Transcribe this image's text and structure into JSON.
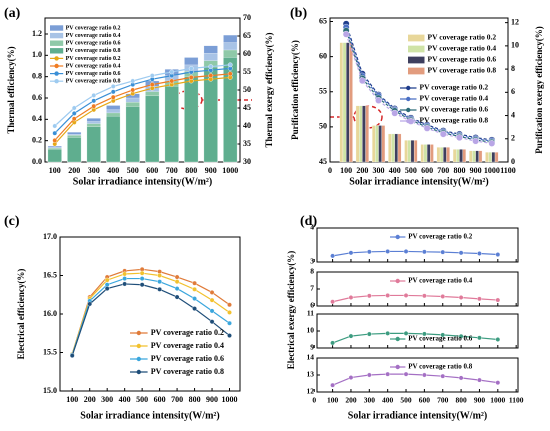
{
  "chart_data": [
    {
      "type": "bar-line",
      "panel": "(a)",
      "bar_mode": "overlap",
      "xlabel": "Solar irradiance intensity(W/m²)",
      "ylabel": "Thermal efficiency(%)",
      "y2label": "Thermal exergy efficiency(%)",
      "categories": [
        "100",
        "200",
        "300",
        "400",
        "500",
        "600",
        "700",
        "800",
        "900",
        "1000"
      ],
      "ylim": [
        0,
        1.35
      ],
      "yticks": [
        {
          "value": 0,
          "label": "0.0"
        },
        0.2,
        0.4,
        0.6,
        0.8,
        {
          "value": 1,
          "label": "1.0"
        },
        1.2
      ],
      "y2lim": [
        30,
        70
      ],
      "y2ticks": [
        30,
        35,
        40,
        45,
        50,
        55,
        60,
        65,
        70
      ],
      "series": [
        {
          "name": "PV coverage ratio 0.2",
          "color": "#7b9ed6",
          "values": [
            0.15,
            0.28,
            0.41,
            0.53,
            0.64,
            0.76,
            0.87,
            0.98,
            1.09,
            1.19
          ]
        },
        {
          "name": "PV coverage ratio 0.4",
          "color": "#a8c3e6",
          "values": [
            0.14,
            0.26,
            0.38,
            0.49,
            0.6,
            0.71,
            0.81,
            0.91,
            1.02,
            1.12
          ]
        },
        {
          "name": "PV coverage ratio 0.6",
          "color": "#8fc9a8",
          "values": [
            0.13,
            0.25,
            0.36,
            0.46,
            0.56,
            0.66,
            0.76,
            0.85,
            0.95,
            1.05
          ]
        },
        {
          "name": "PV coverage ratio 0.8",
          "color": "#5fae8f",
          "values": [
            0.12,
            0.23,
            0.33,
            0.43,
            0.52,
            0.62,
            0.71,
            0.8,
            0.89,
            0.98
          ]
        },
        {
          "name": "PV coverage ratio 0.2",
          "color": "#e6a817",
          "axis": "y2",
          "values": [
            35,
            41,
            44.5,
            47,
            49,
            50.5,
            51.5,
            52.5,
            53,
            53.5
          ]
        },
        {
          "name": "PV coverage ratio 0.4",
          "color": "#f07c22",
          "axis": "y2",
          "values": [
            36,
            42,
            45.5,
            48,
            50,
            51.5,
            52.5,
            53.5,
            54,
            54.5
          ]
        },
        {
          "name": "PV coverage ratio 0.6",
          "color": "#3a8fd6",
          "axis": "y2",
          "values": [
            38,
            43.5,
            47,
            49.5,
            51.5,
            53,
            54,
            55,
            55.5,
            56
          ]
        },
        {
          "name": "PV coverage ratio 0.8",
          "color": "#9ecbf0",
          "axis": "y2",
          "values": [
            40,
            45,
            48.5,
            51,
            52.5,
            54,
            55,
            56,
            56.5,
            57
          ]
        }
      ]
    },
    {
      "type": "bar-line",
      "panel": "(b)",
      "bar_mode": "group",
      "xlabel": "Solar irradiance intensity(W/m²)",
      "ylabel": "Purification efficiency(%)",
      "y2label": "Purification exergy efficiency(%)",
      "x": [
        100,
        200,
        300,
        400,
        500,
        600,
        700,
        800,
        900,
        1000
      ],
      "xlim": [
        0,
        1100
      ],
      "xticks": [
        0,
        100,
        200,
        300,
        400,
        500,
        600,
        700,
        800,
        900,
        1000,
        1100
      ],
      "ylim": [
        45,
        65.5
      ],
      "yticks": [
        45,
        50,
        55,
        60,
        65
      ],
      "y2lim": [
        0,
        12.4
      ],
      "y2ticks": [
        0,
        2,
        4,
        6,
        8,
        10,
        12
      ],
      "series": [
        {
          "name": "PV coverage ratio 0.2",
          "color": "#e8d79a",
          "values": [
            62.0,
            53.0,
            50.2,
            49.0,
            48.1,
            47.5,
            47.1,
            46.8,
            46.6,
            46.4
          ]
        },
        {
          "name": "PV coverage ratio 0.4",
          "color": "#cfe3a6",
          "values": [
            62.0,
            53.0,
            50.2,
            49.0,
            48.1,
            47.5,
            47.1,
            46.8,
            46.6,
            46.4
          ]
        },
        {
          "name": "PV coverage ratio 0.6",
          "color": "#3e3f5e",
          "values": [
            62.0,
            53.0,
            50.2,
            49.0,
            48.1,
            47.5,
            47.1,
            46.8,
            46.6,
            46.4
          ]
        },
        {
          "name": "PV coverage ratio 0.8",
          "color": "#e29c7e",
          "values": [
            62.0,
            53.0,
            50.2,
            49.0,
            48.1,
            47.5,
            47.1,
            46.8,
            46.6,
            46.4
          ]
        },
        {
          "name": "PV coverage ratio 0.2",
          "color": "#1f3d8c",
          "axis": "y2",
          "values": [
            11.9,
            7.6,
            5.8,
            4.6,
            3.8,
            3.2,
            2.7,
            2.4,
            2.1,
            1.9
          ]
        },
        {
          "name": "PV coverage ratio 0.4",
          "color": "#4a6fc4",
          "axis": "y2",
          "values": [
            11.6,
            7.4,
            5.7,
            4.5,
            3.7,
            3.1,
            2.6,
            2.3,
            2.0,
            1.8
          ]
        },
        {
          "name": "PV coverage ratio 0.6",
          "color": "#2a6b78",
          "axis": "y2",
          "values": [
            11.3,
            7.2,
            5.5,
            4.4,
            3.6,
            3.0,
            2.5,
            2.2,
            1.9,
            1.7
          ]
        },
        {
          "name": "PV coverage ratio 0.8",
          "color": "#b9a6e6",
          "axis": "y2",
          "values": [
            11.0,
            7.0,
            5.3,
            4.2,
            3.5,
            2.9,
            2.4,
            2.1,
            1.8,
            1.6
          ]
        }
      ]
    },
    {
      "type": "line",
      "panel": "(c)",
      "xlabel": "Solar irradiance intensity(W/m²)",
      "ylabel": "Electrical efficiency(%)",
      "x": [
        100,
        200,
        300,
        400,
        500,
        600,
        700,
        800,
        900,
        1000
      ],
      "xlim": [
        30,
        1060
      ],
      "xticks": [
        100,
        200,
        300,
        400,
        500,
        600,
        700,
        800,
        900,
        1000
      ],
      "ylim": [
        15,
        17
      ],
      "yticks": [
        {
          "value": 15,
          "label": "15.0"
        },
        15.5,
        {
          "value": 16,
          "label": "16.0"
        },
        16.5,
        {
          "value": 17,
          "label": "17.0"
        }
      ],
      "series": [
        {
          "name": "PV coverage ratio 0.2",
          "color": "#e07b39",
          "values": [
            15.48,
            16.22,
            16.48,
            16.56,
            16.58,
            16.55,
            16.48,
            16.4,
            16.28,
            16.12
          ]
        },
        {
          "name": "PV coverage ratio 0.4",
          "color": "#f2c12e",
          "values": [
            15.48,
            16.2,
            16.44,
            16.52,
            16.53,
            16.5,
            16.42,
            16.32,
            16.18,
            16.02
          ]
        },
        {
          "name": "PV coverage ratio 0.6",
          "color": "#3aa6dd",
          "values": [
            15.47,
            16.17,
            16.38,
            16.46,
            16.46,
            16.42,
            16.33,
            16.2,
            16.04,
            15.88
          ]
        },
        {
          "name": "PV coverage ratio 0.8",
          "color": "#1f4e79",
          "values": [
            15.46,
            16.13,
            16.33,
            16.39,
            16.38,
            16.32,
            16.22,
            16.07,
            15.9,
            15.72
          ]
        }
      ]
    },
    {
      "type": "line",
      "panel": "(d)",
      "ylabel": "Electrical exergy efficiency(%)",
      "x": [
        100,
        200,
        300,
        400,
        500,
        600,
        700,
        800,
        900,
        1000
      ],
      "xlim": [
        15,
        1110
      ],
      "xticks": [
        0,
        100,
        200,
        300,
        400,
        500,
        600,
        700,
        800,
        900,
        1000,
        1100
      ],
      "ylim": [
        3,
        4
      ],
      "yticks": [
        3,
        4
      ],
      "series": [
        {
          "name": "PV coverage ratio 0.2",
          "color": "#5b7fd4",
          "values": [
            3.18,
            3.27,
            3.3,
            3.31,
            3.31,
            3.3,
            3.29,
            3.27,
            3.25,
            3.22
          ]
        }
      ]
    },
    {
      "type": "line",
      "x": [
        100,
        200,
        300,
        400,
        500,
        600,
        700,
        800,
        900,
        1000
      ],
      "xlim": [
        15,
        1110
      ],
      "xticks": [
        0,
        100,
        200,
        300,
        400,
        500,
        600,
        700,
        800,
        900,
        1000,
        1100
      ],
      "ylim": [
        6,
        8
      ],
      "yticks": [
        6,
        7,
        8
      ],
      "series": [
        {
          "name": "PV coverage ratio 0.4",
          "color": "#e07a9a",
          "values": [
            6.25,
            6.5,
            6.6,
            6.62,
            6.62,
            6.6,
            6.56,
            6.5,
            6.42,
            6.35
          ]
        }
      ]
    },
    {
      "type": "line",
      "x": [
        100,
        200,
        300,
        400,
        500,
        600,
        700,
        800,
        900,
        1000
      ],
      "xlim": [
        15,
        1110
      ],
      "xticks": [
        0,
        100,
        200,
        300,
        400,
        500,
        600,
        700,
        800,
        900,
        1000,
        1100
      ],
      "ylim": [
        9,
        11
      ],
      "yticks": [
        9,
        10,
        11
      ],
      "series": [
        {
          "name": "PV coverage ratio 0.6",
          "color": "#3c9c80",
          "values": [
            9.3,
            9.7,
            9.82,
            9.86,
            9.86,
            9.83,
            9.77,
            9.69,
            9.6,
            9.5
          ]
        }
      ]
    },
    {
      "type": "line",
      "xlabel": "Solar irradiance intensity(W/m²)",
      "x": [
        100,
        200,
        300,
        400,
        500,
        600,
        700,
        800,
        900,
        1000
      ],
      "xlim": [
        15,
        1110
      ],
      "xticks": [
        0,
        100,
        200,
        300,
        400,
        500,
        600,
        700,
        800,
        900,
        1000,
        1100
      ],
      "ylim": [
        12,
        14
      ],
      "yticks": [
        12,
        13,
        14
      ],
      "series": [
        {
          "name": "PV coverage ratio 0.8",
          "color": "#a46fc4",
          "values": [
            12.4,
            12.85,
            13.0,
            13.05,
            13.05,
            13.0,
            12.93,
            12.83,
            12.7,
            12.55
          ]
        }
      ]
    }
  ]
}
